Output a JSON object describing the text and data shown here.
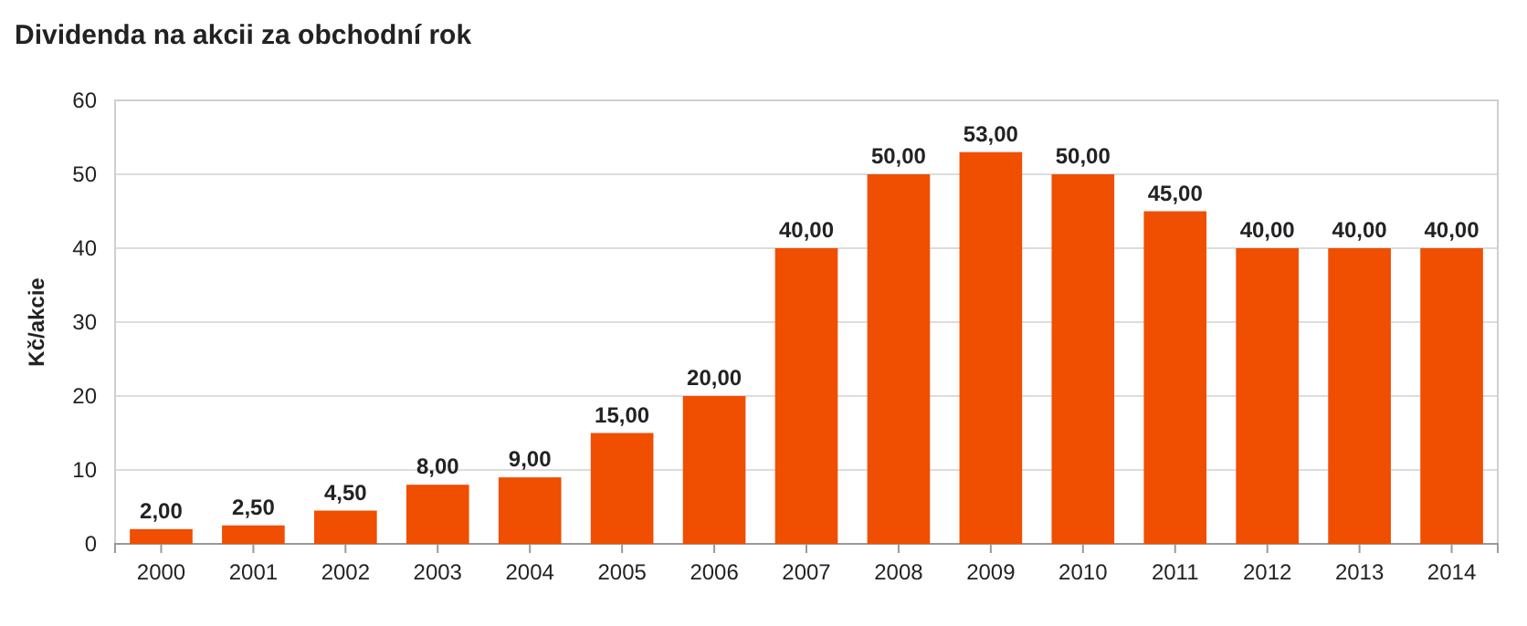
{
  "chart_data": {
    "type": "bar",
    "title": "Dividenda na akcii za obchodní rok",
    "ylabel": "Kč/akcie",
    "categories": [
      "2000",
      "2001",
      "2002",
      "2003",
      "2004",
      "2005",
      "2006",
      "2007",
      "2008",
      "2009",
      "2010",
      "2011",
      "2012",
      "2013",
      "2014"
    ],
    "values": [
      2,
      2.5,
      4.5,
      8,
      9,
      15,
      20,
      40,
      50,
      53,
      50,
      45,
      40,
      40,
      40
    ],
    "value_labels": [
      "2,00",
      "2,50",
      "4,50",
      "8,00",
      "9,00",
      "15,00",
      "20,00",
      "40,00",
      "50,00",
      "53,00",
      "50,00",
      "45,00",
      "40,00",
      "40,00",
      "40,00"
    ],
    "color": "#f04e00",
    "ylim": [
      0,
      60
    ],
    "yticks": [
      0,
      10,
      20,
      30,
      40,
      50,
      60
    ],
    "grid": "y"
  }
}
